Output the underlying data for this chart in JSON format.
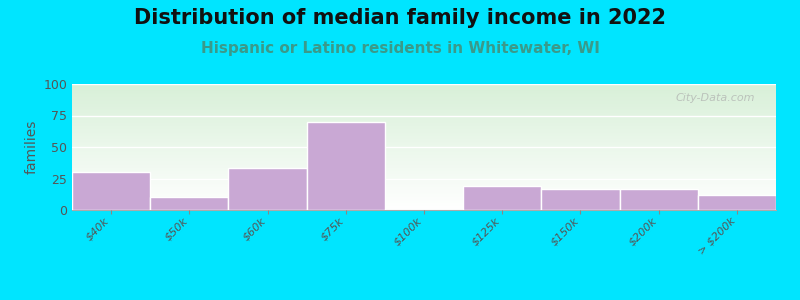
{
  "title": "Distribution of median family income in 2022",
  "subtitle": "Hispanic or Latino residents in Whitewater, WI",
  "ylabel": "families",
  "categories": [
    "$40k",
    "$50k",
    "$60k",
    "$75k",
    "$100k",
    "$125k",
    "$150k",
    "$200k",
    "> $200k"
  ],
  "values": [
    30,
    10,
    33,
    70,
    0,
    19,
    17,
    17,
    12
  ],
  "bar_color": "#c9a8d4",
  "bar_edge_color": "#ffffff",
  "ylim": [
    0,
    100
  ],
  "yticks": [
    0,
    25,
    50,
    75,
    100
  ],
  "background_outer": "#00e5ff",
  "bg_top_color": "#d8f0d8",
  "bg_bottom_color": "#ffffff",
  "title_fontsize": 15,
  "subtitle_fontsize": 11,
  "subtitle_color": "#3a9a8a",
  "watermark": "City-Data.com",
  "ytick_label_fontsize": 9,
  "xtick_label_fontsize": 8
}
